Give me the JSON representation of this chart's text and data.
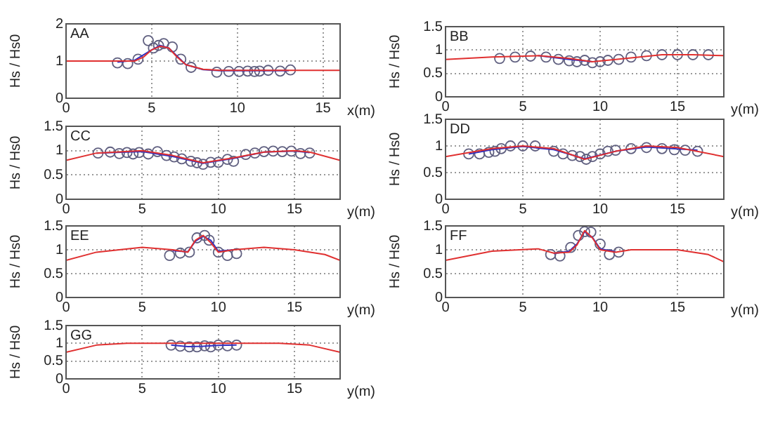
{
  "chart_data": [
    {
      "type": "line",
      "title": "AA",
      "xlabel": "x(m)",
      "ylabel": "Hs / Hs0",
      "xlim": [
        0,
        16
      ],
      "ylim": [
        0,
        2
      ],
      "xticks": [
        0,
        5,
        10,
        15
      ],
      "yticks": [
        0,
        1,
        2
      ],
      "grid": true,
      "series": [
        {
          "marker": "none",
          "color": "#e03030",
          "x": [
            0,
            3,
            4,
            4.5,
            5,
            5.5,
            6,
            6.5,
            7,
            8,
            9,
            16
          ],
          "values": [
            1,
            1,
            1,
            1.1,
            1.3,
            1.4,
            1.35,
            1.1,
            0.9,
            0.78,
            0.75,
            0.75
          ]
        },
        {
          "marker": "none",
          "color": "#3030c0",
          "x": [
            3,
            4,
            5,
            5.5,
            6,
            7,
            8,
            9,
            13
          ],
          "values": [
            0.97,
            1.02,
            1.3,
            1.42,
            1.35,
            0.9,
            0.77,
            0.74,
            0.74
          ]
        },
        {
          "type": "scatter",
          "marker": "circle",
          "color": "#606080",
          "x": [
            3,
            3.6,
            4.2,
            4.8,
            5.1,
            5.4,
            5.7,
            6.2,
            6.7,
            7.3,
            8.8,
            9.5,
            10.1,
            10.6,
            11,
            11.3,
            11.8,
            12.5,
            13.1
          ],
          "values": [
            0.95,
            0.93,
            1.05,
            1.55,
            1.35,
            1.42,
            1.47,
            1.38,
            1.05,
            0.83,
            0.7,
            0.72,
            0.72,
            0.73,
            0.72,
            0.73,
            0.75,
            0.73,
            0.76
          ]
        }
      ]
    },
    {
      "type": "line",
      "title": "BB",
      "xlabel": "y(m)",
      "ylabel": "Hs / Hs0",
      "xlim": [
        0,
        18
      ],
      "ylim": [
        0,
        1.5
      ],
      "xticks": [
        0,
        5,
        10,
        15
      ],
      "yticks": [
        0,
        0.5,
        1,
        1.5
      ],
      "grid": true,
      "series": [
        {
          "marker": "none",
          "color": "#e03030",
          "x": [
            0,
            3,
            6,
            8,
            9.5,
            11,
            14,
            16,
            18
          ],
          "values": [
            0.8,
            0.85,
            0.88,
            0.82,
            0.75,
            0.8,
            0.9,
            0.9,
            0.88
          ]
        },
        {
          "marker": "none",
          "color": "#3030c0",
          "x": [
            6,
            8,
            9.5
          ],
          "values": [
            0.88,
            0.8,
            0.75
          ]
        },
        {
          "type": "scatter",
          "marker": "circle",
          "color": "#606080",
          "x": [
            3.5,
            4.5,
            5.5,
            6.5,
            7.3,
            8,
            8.5,
            9,
            9.5,
            10,
            10.5,
            11.2,
            12,
            13,
            14,
            15,
            16,
            17
          ],
          "values": [
            0.82,
            0.85,
            0.87,
            0.85,
            0.8,
            0.77,
            0.75,
            0.78,
            0.73,
            0.75,
            0.78,
            0.8,
            0.85,
            0.88,
            0.9,
            0.9,
            0.9,
            0.9
          ]
        }
      ]
    },
    {
      "type": "line",
      "title": "CC",
      "xlabel": "y(m)",
      "ylabel": "Hs / Hs0",
      "xlim": [
        0,
        18
      ],
      "ylim": [
        0,
        1.5
      ],
      "xticks": [
        0,
        5,
        10,
        15
      ],
      "yticks": [
        0,
        0.5,
        1,
        1.5
      ],
      "grid": true,
      "series": [
        {
          "marker": "none",
          "color": "#e03030",
          "x": [
            0,
            2,
            5,
            7,
            9,
            11,
            13,
            15,
            16,
            18
          ],
          "values": [
            0.8,
            0.95,
            1,
            0.9,
            0.75,
            0.85,
            0.97,
            1,
            0.97,
            0.8
          ]
        },
        {
          "marker": "none",
          "color": "#3030c0",
          "x": [
            2,
            5,
            7,
            9,
            11,
            13,
            15,
            16
          ],
          "values": [
            0.95,
            0.98,
            0.88,
            0.74,
            0.84,
            0.97,
            0.99,
            0.96
          ]
        },
        {
          "type": "scatter",
          "marker": "circle",
          "color": "#606080",
          "x": [
            2.1,
            2.9,
            3.5,
            4,
            4.4,
            4.8,
            5.4,
            6,
            6.6,
            7.1,
            7.6,
            8.2,
            8.6,
            9,
            9.5,
            10,
            10.6,
            11,
            11.8,
            12.4,
            13,
            13.6,
            14.2,
            14.8,
            15.4,
            16
          ],
          "values": [
            0.95,
            0.97,
            0.94,
            0.96,
            0.93,
            0.96,
            0.93,
            0.98,
            0.9,
            0.87,
            0.83,
            0.78,
            0.75,
            0.72,
            0.76,
            0.76,
            0.82,
            0.78,
            0.92,
            0.95,
            0.98,
            0.99,
            0.98,
            0.99,
            0.94,
            0.95
          ]
        }
      ]
    },
    {
      "type": "line",
      "title": "DD",
      "xlabel": "y(m)",
      "ylabel": "Hs / Hs0",
      "xlim": [
        0,
        18
      ],
      "ylim": [
        0,
        1.5
      ],
      "xticks": [
        0,
        5,
        10,
        15
      ],
      "yticks": [
        0,
        0.5,
        1,
        1.5
      ],
      "grid": true,
      "series": [
        {
          "marker": "none",
          "color": "#e03030",
          "x": [
            0,
            3,
            5,
            7,
            9,
            11,
            13,
            15,
            18
          ],
          "values": [
            0.8,
            0.95,
            1,
            0.95,
            0.75,
            0.9,
            1,
            0.97,
            0.8
          ]
        },
        {
          "marker": "none",
          "color": "#3030c0",
          "x": [
            1.5,
            3,
            5,
            7,
            9,
            11,
            13,
            16.3
          ],
          "values": [
            0.85,
            0.93,
            0.99,
            0.93,
            0.76,
            0.9,
            0.98,
            0.92
          ]
        },
        {
          "type": "scatter",
          "marker": "circle",
          "color": "#606080",
          "x": [
            1.5,
            2.2,
            2.8,
            3.2,
            3.6,
            4.2,
            5,
            5.8,
            7,
            7.6,
            8.2,
            8.7,
            9.1,
            9.5,
            10,
            10.5,
            11,
            12,
            13,
            14,
            14.8,
            15.5,
            16.3
          ],
          "values": [
            0.85,
            0.85,
            0.88,
            0.9,
            0.95,
            1,
            1,
            1,
            0.9,
            0.85,
            0.82,
            0.8,
            0.75,
            0.8,
            0.85,
            0.9,
            0.92,
            0.95,
            0.97,
            0.95,
            0.93,
            0.92,
            0.9
          ]
        }
      ]
    },
    {
      "type": "line",
      "title": "EE",
      "xlabel": "y(m)",
      "ylabel": "Hs / Hs0",
      "xlim": [
        0,
        18
      ],
      "ylim": [
        0,
        1.5
      ],
      "xticks": [
        0,
        5,
        10,
        15
      ],
      "yticks": [
        0,
        0.5,
        1,
        1.5
      ],
      "grid": true,
      "series": [
        {
          "marker": "none",
          "color": "#e03030",
          "x": [
            0,
            2,
            5,
            7,
            8,
            8.5,
            9,
            9.5,
            10,
            11,
            13,
            15,
            17,
            18
          ],
          "values": [
            0.78,
            0.95,
            1.05,
            1,
            0.95,
            1.2,
            1.3,
            1.15,
            0.95,
            1,
            1.05,
            1,
            0.9,
            0.78
          ]
        },
        {
          "marker": "none",
          "color": "#3030c0",
          "x": [
            7,
            8,
            8.5,
            9,
            9.5,
            10,
            11
          ],
          "values": [
            0.98,
            0.96,
            1.18,
            1.28,
            1.2,
            0.97,
            1
          ]
        },
        {
          "type": "scatter",
          "marker": "circle",
          "color": "#606080",
          "x": [
            6.8,
            7.5,
            8.1,
            8.6,
            9.1,
            9.4,
            10,
            10.6,
            11.2
          ],
          "values": [
            0.88,
            0.93,
            0.95,
            1.25,
            1.3,
            1.2,
            0.95,
            0.88,
            0.92
          ]
        }
      ]
    },
    {
      "type": "line",
      "title": "FF",
      "xlabel": "y(m)",
      "ylabel": "Hs / Hs0",
      "xlim": [
        0,
        18
      ],
      "ylim": [
        0,
        1.5
      ],
      "xticks": [
        0,
        5,
        10,
        15
      ],
      "yticks": [
        0,
        0.5,
        1,
        1.5
      ],
      "grid": true,
      "series": [
        {
          "marker": "none",
          "color": "#e03030",
          "x": [
            0,
            3,
            6,
            7,
            8,
            8.5,
            9,
            9.5,
            10,
            11,
            12,
            15,
            17,
            18
          ],
          "values": [
            0.78,
            0.97,
            1.02,
            0.93,
            0.95,
            1.1,
            1.4,
            1.25,
            1,
            0.95,
            1,
            1,
            0.9,
            0.75
          ]
        },
        {
          "marker": "none",
          "color": "#3030c0",
          "x": [
            7,
            8,
            8.5,
            9,
            9.5,
            10,
            11
          ],
          "values": [
            0.92,
            0.97,
            1.12,
            1.38,
            1.26,
            1.02,
            0.96
          ]
        },
        {
          "type": "scatter",
          "marker": "circle",
          "color": "#606080",
          "x": [
            6.8,
            7.4,
            8.1,
            8.6,
            9,
            9.4,
            10,
            10.6,
            11.2
          ],
          "values": [
            0.9,
            0.87,
            1.05,
            1.3,
            1.38,
            1.37,
            1.12,
            0.9,
            0.95
          ]
        }
      ]
    },
    {
      "type": "line",
      "title": "GG",
      "xlabel": "y(m)",
      "ylabel": "Hs / Hs0",
      "xlim": [
        0,
        18
      ],
      "ylim": [
        0,
        1.5
      ],
      "xticks": [
        0,
        5,
        10,
        15
      ],
      "yticks": [
        0,
        0.5,
        1,
        1.5
      ],
      "grid": true,
      "series": [
        {
          "marker": "none",
          "color": "#e03030",
          "x": [
            0,
            2,
            4,
            14,
            16,
            18
          ],
          "values": [
            0.75,
            0.95,
            1,
            1,
            0.95,
            0.75
          ]
        },
        {
          "marker": "none",
          "color": "#3030c0",
          "x": [
            6.9,
            8,
            9,
            10,
            11.2
          ],
          "values": [
            0.95,
            0.91,
            0.92,
            0.94,
            0.95
          ]
        },
        {
          "type": "scatter",
          "marker": "circle",
          "color": "#606080",
          "x": [
            6.9,
            7.5,
            8.1,
            8.6,
            9.1,
            9.5,
            10,
            10.6,
            11.2
          ],
          "values": [
            0.95,
            0.92,
            0.9,
            0.9,
            0.93,
            0.9,
            0.95,
            0.93,
            0.95
          ]
        }
      ]
    }
  ]
}
